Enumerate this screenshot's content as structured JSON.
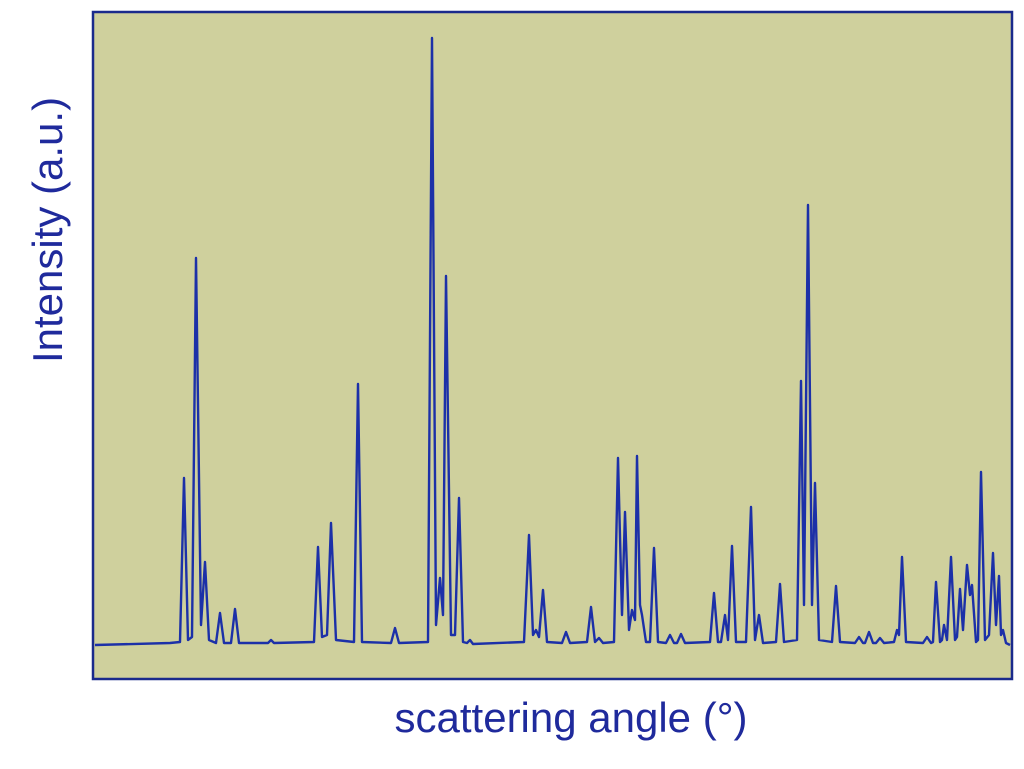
{
  "chart_data": {
    "type": "line",
    "xlabel": "scattering angle (°)",
    "ylabel": "Intensity (a.u.)",
    "background": "#cfd09d",
    "frame_color": "#1a2a8c",
    "color": "#1c30a8",
    "xlim": [
      93,
      1012
    ],
    "ylim": [
      -34,
      633
    ],
    "x": [
      95,
      170,
      180,
      184,
      188,
      192,
      196,
      201,
      205,
      209,
      216,
      220,
      224,
      231,
      235,
      239,
      268,
      271,
      274,
      314,
      318,
      322,
      327,
      331,
      336,
      354,
      358,
      362,
      391,
      395,
      399,
      428,
      432,
      436,
      440,
      443,
      446,
      451,
      455,
      459,
      463,
      467,
      470,
      473,
      524,
      529,
      533,
      536,
      539,
      543,
      547,
      562,
      566,
      570,
      587,
      591,
      595,
      599,
      603,
      614,
      618,
      622,
      625,
      629,
      632,
      635,
      637,
      640,
      642,
      646,
      650,
      654,
      658,
      666,
      670,
      674,
      677,
      681,
      685,
      710,
      714,
      718,
      721,
      725,
      728,
      732,
      736,
      746,
      751,
      755,
      759,
      763,
      776,
      780,
      784,
      797,
      801,
      804,
      808,
      812,
      815,
      819,
      832,
      836,
      840,
      855,
      859,
      863,
      865,
      869,
      873,
      876,
      880,
      884,
      894,
      897,
      899,
      902,
      906,
      923,
      927,
      931,
      933,
      936,
      940,
      942,
      944,
      947,
      951,
      955,
      957,
      960,
      963,
      967,
      970,
      972,
      976,
      978,
      981,
      985,
      989,
      993,
      996,
      999,
      1001,
      1003,
      1006,
      1010
    ],
    "values": [
      0,
      2,
      3,
      167,
      5,
      8,
      387,
      20,
      83,
      5,
      2,
      32,
      2,
      2,
      36,
      2,
      2,
      5,
      2,
      3,
      98,
      8,
      10,
      122,
      5,
      3,
      261,
      3,
      2,
      17,
      2,
      3,
      607,
      20,
      67,
      30,
      369,
      10,
      10,
      147,
      3,
      2,
      5,
      1,
      3,
      110,
      10,
      15,
      8,
      55,
      3,
      2,
      13,
      2,
      3,
      38,
      3,
      7,
      2,
      3,
      187,
      30,
      133,
      15,
      35,
      25,
      189,
      40,
      30,
      3,
      3,
      97,
      3,
      2,
      10,
      2,
      2,
      11,
      2,
      3,
      52,
      3,
      3,
      30,
      5,
      99,
      3,
      3,
      138,
      5,
      30,
      2,
      3,
      61,
      3,
      5,
      264,
      40,
      440,
      40,
      162,
      5,
      3,
      59,
      3,
      2,
      8,
      2,
      2,
      13,
      2,
      2,
      7,
      2,
      3,
      15,
      10,
      88,
      3,
      2,
      8,
      2,
      3,
      63,
      3,
      5,
      20,
      5,
      88,
      5,
      8,
      56,
      15,
      80,
      50,
      60,
      3,
      5,
      173,
      5,
      10,
      92,
      20,
      69,
      10,
      15,
      2,
      0
    ]
  }
}
